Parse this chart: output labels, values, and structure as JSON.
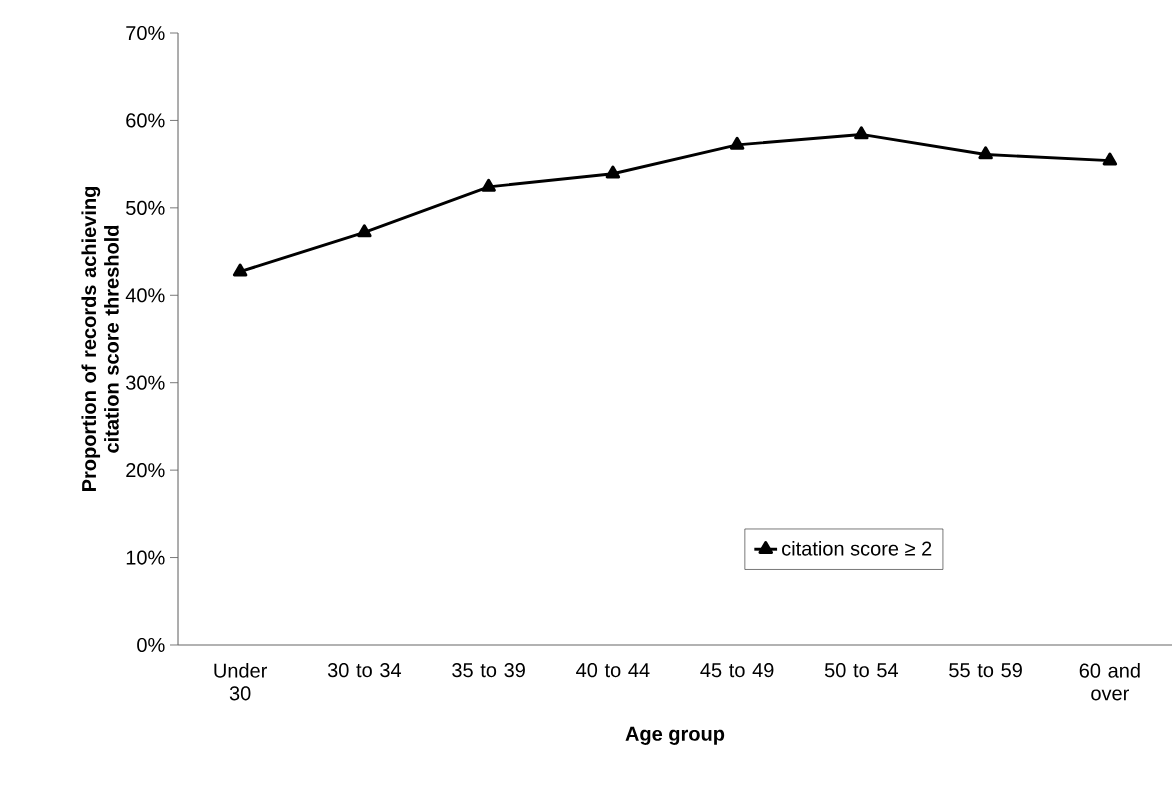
{
  "chart_data": {
    "type": "line",
    "xlabel": "Age group",
    "ylabel": "Proportion of records achieving citation score threshold",
    "categories": [
      "Under 30",
      "30 to 34",
      "35 to 39",
      "40 to 44",
      "45 to 49",
      "50 to 54",
      "55 to 59",
      "60 and over"
    ],
    "series": [
      {
        "name": "citation score ≥ 2",
        "color": "#000000",
        "values": [
          42.7,
          47.2,
          52.4,
          53.9,
          57.2,
          58.4,
          56.1,
          55.4
        ]
      }
    ],
    "ylim": [
      0,
      70
    ],
    "yticks": [
      {
        "value": 0,
        "label": "0%"
      },
      {
        "value": 10,
        "label": "10%"
      },
      {
        "value": 20,
        "label": "20%"
      },
      {
        "value": 30,
        "label": "30%"
      },
      {
        "value": 40,
        "label": "40%"
      },
      {
        "value": 50,
        "label": "50%"
      },
      {
        "value": 60,
        "label": "60%"
      },
      {
        "value": 70,
        "label": "70%"
      }
    ],
    "grid": false,
    "legend": "bottom right",
    "marker": "triangle",
    "line_style": "solid"
  }
}
